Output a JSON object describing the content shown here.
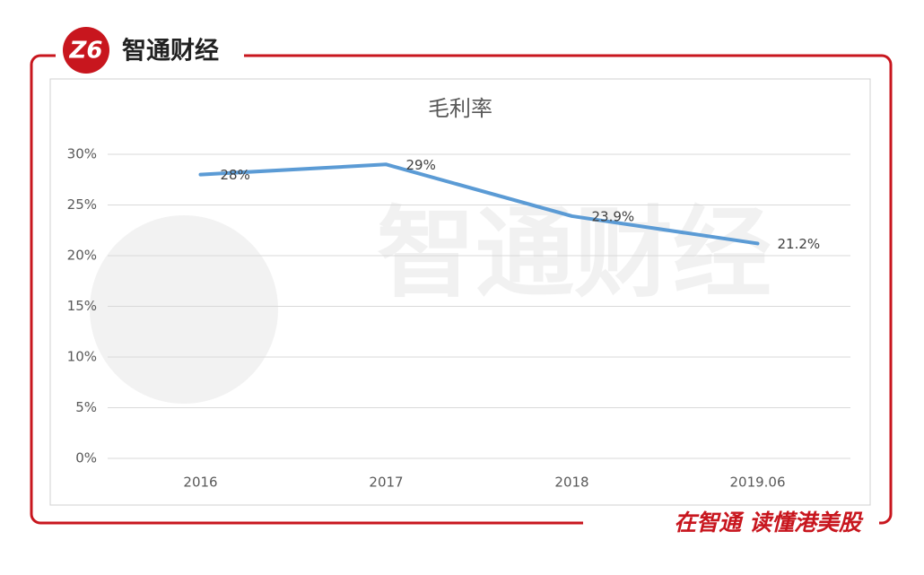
{
  "header": {
    "brand": "智通财经"
  },
  "footer": {
    "slogan": "在智通 读懂港美股"
  },
  "chart_data": {
    "type": "line",
    "title": "毛利率",
    "categories": [
      "2016",
      "2017",
      "2018",
      "2019.06"
    ],
    "series": [
      {
        "name": "毛利率",
        "color": "#5b9bd5",
        "values": [
          28,
          29,
          23.9,
          21.2
        ],
        "value_labels": [
          "28%",
          "29%",
          "23.9%",
          "21.2%"
        ]
      }
    ],
    "ylim": [
      0,
      30
    ],
    "yticks": [
      {
        "value": 0,
        "label": "0%"
      },
      {
        "value": 5,
        "label": "5%"
      },
      {
        "value": 10,
        "label": "10%"
      },
      {
        "value": 15,
        "label": "15%"
      },
      {
        "value": 20,
        "label": "20%"
      },
      {
        "value": 25,
        "label": "25%"
      },
      {
        "value": 30,
        "label": "30%"
      }
    ],
    "grid": true
  }
}
